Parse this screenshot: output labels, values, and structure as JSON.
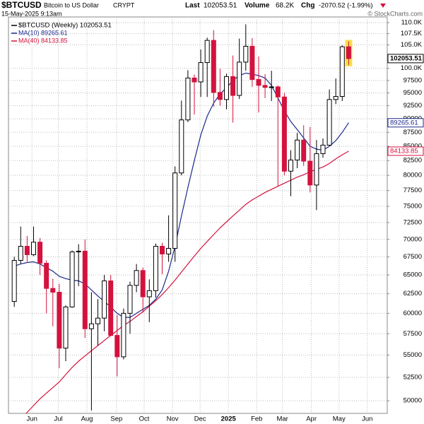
{
  "chart_data": {
    "type": "candlestick",
    "title": "$BTCUSD",
    "subtitle": "Bitcoin to US Dollar",
    "exchange": "CRYPT",
    "date": "15-May-2025 9:13am",
    "copyright": "© StockCharts.com",
    "stats": {
      "last_label": "Last",
      "last": "102053.51",
      "volume_label": "Volume",
      "volume": "68.2K",
      "chg_label": "Chg",
      "chg": "-2070.52 (-1.99%)"
    },
    "log_scale": true,
    "grid": true,
    "legend": "upper left",
    "xlim": [
      -0.9,
      58
    ],
    "xticks": [
      {
        "value": 2.75,
        "label": "Jun"
      },
      {
        "value": 6.85,
        "label": "Jul"
      },
      {
        "value": 11.3,
        "label": "Aug"
      },
      {
        "value": 15.9,
        "label": "Sep"
      },
      {
        "value": 20.2,
        "label": "Oct"
      },
      {
        "value": 24.6,
        "label": "Nov"
      },
      {
        "value": 28.9,
        "label": "Dec"
      },
      {
        "value": 33.3,
        "label": "2025"
      },
      {
        "value": 37.7,
        "label": "Feb"
      },
      {
        "value": 41.7,
        "label": "Mar"
      },
      {
        "value": 46.2,
        "label": "Apr"
      },
      {
        "value": 50.5,
        "label": "May"
      },
      {
        "value": 54.9,
        "label": "Jun"
      }
    ],
    "ylim": [
      48700,
      111300
    ],
    "yticks": [
      50000,
      52500,
      55000,
      57500,
      60000,
      62500,
      65000,
      67500,
      70000,
      72500,
      75000,
      77500,
      80000,
      82500,
      85000,
      87500,
      90000,
      92500,
      95000,
      97500,
      {
        "value": 100000,
        "label": "100.0K"
      },
      {
        "value": 105000,
        "label": "105.0K"
      },
      {
        "value": 107500,
        "label": "107.5K"
      },
      {
        "value": 110000,
        "label": "110.0K"
      }
    ],
    "candles": {
      "name": "$BTCUSD (Weekly) 102053.51",
      "up_color": "#000000",
      "down_color": "#d3123e",
      "open": [
        61500,
        67000,
        69000,
        67800,
        69600,
        66600,
        63200,
        62700,
        55800,
        60800,
        68200,
        68300,
        58100,
        58700,
        59400,
        64200,
        57300,
        54800,
        60000,
        63600,
        65600,
        62100,
        62900,
        69000,
        67900,
        68700,
        80400,
        89800,
        98000,
        97200,
        101200,
        106000,
        95100,
        93700,
        98300,
        94500,
        101300,
        104700,
        97700,
        96500,
        96100,
        96200,
        94200,
        80700,
        82600,
        86100,
        82400,
        78400,
        83700,
        85200,
        93700,
        94300,
        104600
      ],
      "high": [
        67500,
        71900,
        70500,
        71900,
        70200,
        67000,
        64500,
        63800,
        61000,
        68400,
        69300,
        70000,
        62700,
        61800,
        65000,
        65000,
        59800,
        60600,
        64100,
        66500,
        66000,
        64400,
        69400,
        69500,
        73600,
        81500,
        93500,
        99600,
        98700,
        104000,
        106600,
        108300,
        99900,
        98900,
        102700,
        106400,
        109600,
        106500,
        102500,
        98800,
        99500,
        96500,
        95000,
        84300,
        87400,
        88800,
        88500,
        86100,
        86400,
        95700,
        97900,
        104900,
        105800
      ],
      "low": [
        60800,
        66500,
        66800,
        67600,
        65000,
        60000,
        58400,
        53500,
        54300,
        60700,
        63500,
        57000,
        49000,
        56100,
        57800,
        57200,
        52600,
        54500,
        57500,
        62700,
        60100,
        58900,
        62000,
        65100,
        66800,
        66800,
        80000,
        89400,
        90800,
        94200,
        94200,
        92300,
        92500,
        91800,
        89300,
        93800,
        99500,
        96200,
        91200,
        94000,
        93400,
        78200,
        80000,
        76600,
        81200,
        81600,
        77200,
        74400,
        83000,
        85100,
        92800,
        93400,
        100700
      ],
      "close": [
        67000,
        69000,
        67800,
        69600,
        66600,
        63200,
        62700,
        55800,
        60800,
        68200,
        68300,
        58100,
        58700,
        59400,
        64200,
        57300,
        54800,
        60000,
        63600,
        65600,
        62100,
        62900,
        69000,
        67900,
        68700,
        80400,
        89800,
        98000,
        97200,
        101200,
        106000,
        95100,
        93700,
        98300,
        94500,
        101300,
        104700,
        97700,
        96500,
        96100,
        96200,
        94200,
        80700,
        82600,
        86100,
        82400,
        78400,
        83700,
        85200,
        93700,
        94300,
        104600,
        102053.51
      ]
    },
    "series": [
      {
        "name": "MA(10) 89265.61",
        "color": "#1c2a8c",
        "values": [
          66200,
          66500,
          66700,
          66800,
          66500,
          66000,
          65500,
          64800,
          64500,
          64300,
          64200,
          63800,
          63000,
          62200,
          61500,
          60800,
          60000,
          59500,
          59500,
          60000,
          60500,
          61000,
          61800,
          63000,
          65500,
          69000,
          73500,
          78000,
          82500,
          87000,
          90500,
          93000,
          94800,
          96000,
          97500,
          98500,
          99000,
          98800,
          98500,
          98000,
          96500,
          94000,
          91500,
          89500,
          88000,
          86500,
          85000,
          84500,
          84300,
          85000,
          86000,
          87500,
          89265.61
        ]
      },
      {
        "name": "MA(40) 84133.85",
        "color": "#d3123e",
        "values": [
          47500,
          48200,
          48800,
          49500,
          50200,
          50800,
          51400,
          52000,
          52800,
          53600,
          54300,
          54900,
          55500,
          56100,
          56700,
          57300,
          57900,
          58500,
          59000,
          59600,
          60200,
          60900,
          61600,
          62400,
          63300,
          64300,
          65400,
          66500,
          67600,
          68700,
          69700,
          70700,
          71700,
          72600,
          73500,
          74400,
          75300,
          76000,
          76600,
          77200,
          77700,
          78200,
          78700,
          79200,
          79700,
          80100,
          80600,
          81000,
          81400,
          82000,
          82800,
          83500,
          84133.85
        ]
      }
    ]
  }
}
